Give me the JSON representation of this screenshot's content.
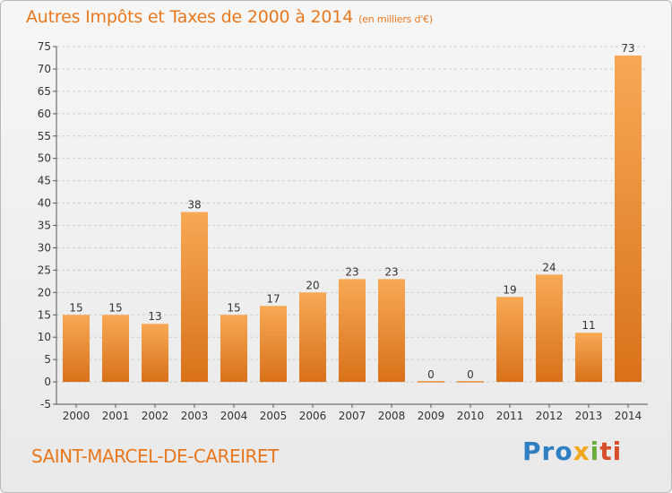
{
  "title": "Autres Impôts et Taxes de 2000 à 2014",
  "unit": "(en milliers d'€)",
  "commune": "SAINT-MARCEL-DE-CAREIRET",
  "logo": {
    "p1": "Pro",
    "p2": "x",
    "p3": "i",
    "p4": "ti"
  },
  "colors": {
    "bar_light": "#f7a954",
    "bar_dark": "#d9711a",
    "title": "#e8781e",
    "grid": "#cccccc"
  },
  "chart_data": {
    "type": "bar",
    "title": "Autres Impôts et Taxes de 2000 à 2014",
    "ylabel": "",
    "xlabel": "",
    "categories": [
      "2000",
      "2001",
      "2002",
      "2003",
      "2004",
      "2005",
      "2006",
      "2007",
      "2008",
      "2009",
      "2010",
      "2011",
      "2012",
      "2013",
      "2014"
    ],
    "values": [
      15,
      15,
      13,
      38,
      15,
      17,
      20,
      23,
      23,
      0,
      0,
      19,
      24,
      11,
      73
    ],
    "ylim": [
      -5,
      75
    ],
    "yticks": [
      -5,
      0,
      5,
      10,
      15,
      20,
      25,
      30,
      35,
      40,
      45,
      50,
      55,
      60,
      65,
      70,
      75
    ],
    "grid": "horizontal dashed"
  }
}
